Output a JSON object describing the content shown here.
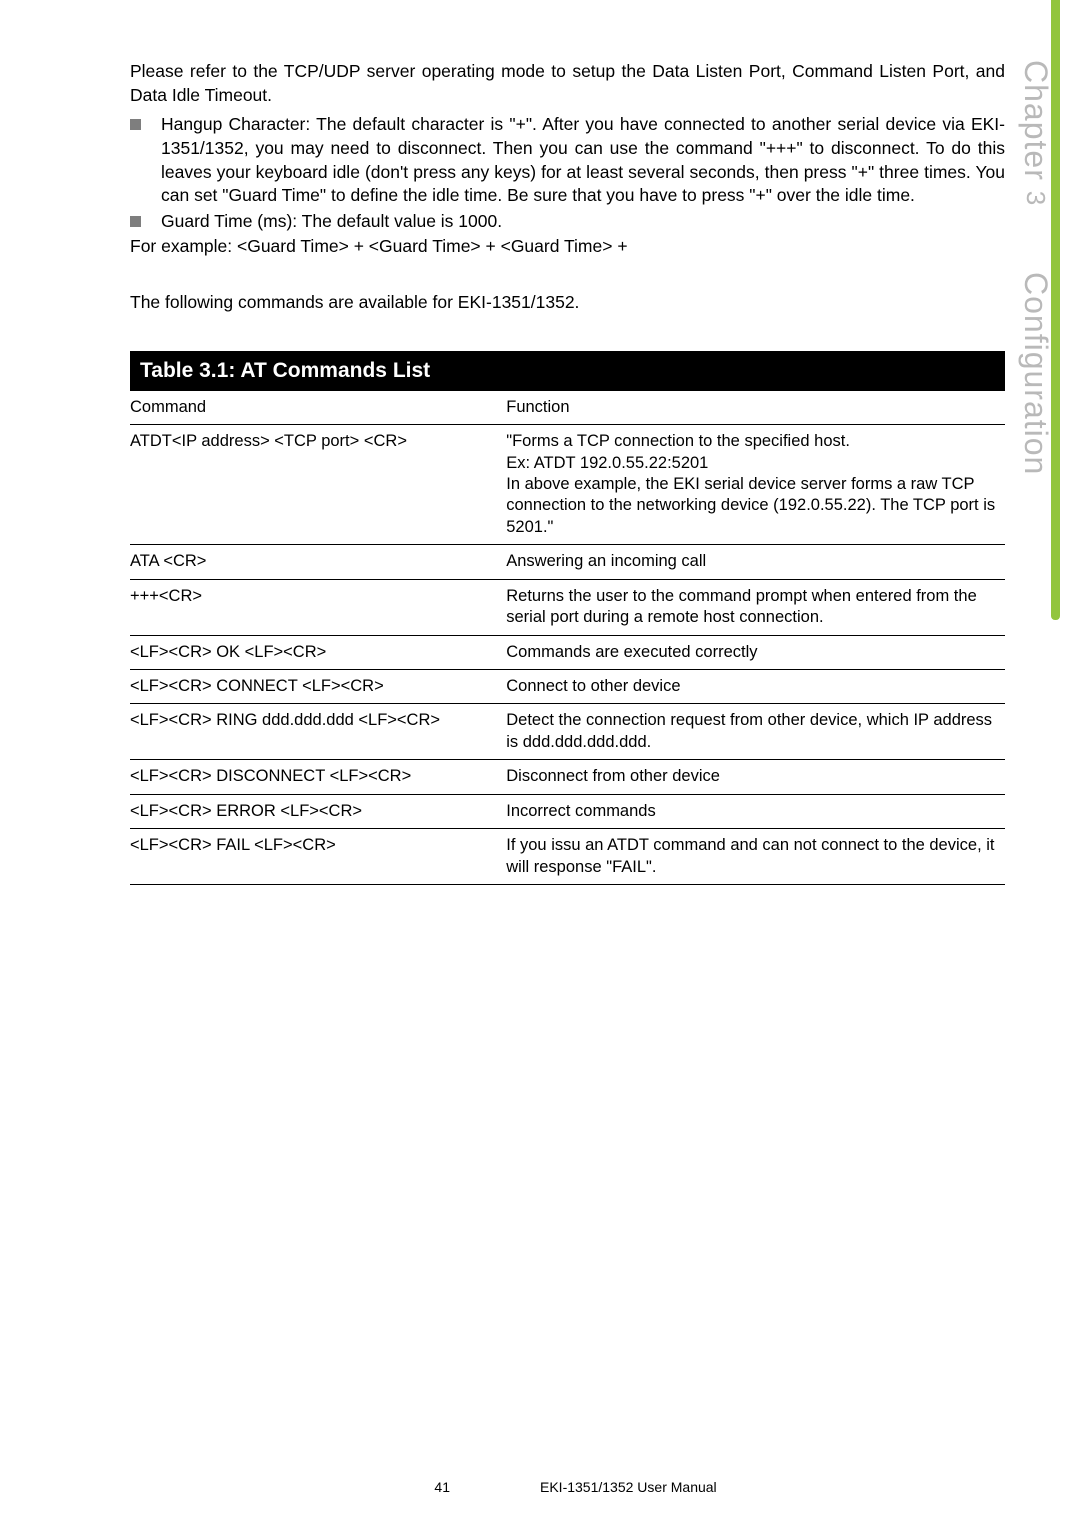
{
  "sideTab": {
    "line1": "Chapter",
    "three": "3",
    "line2": "Configuration"
  },
  "intro": {
    "p1": "Please refer to the TCP/UDP server operating mode to setup the Data Listen Port, Command Listen Port, and Data Idle Timeout.",
    "b1": "Hangup Character: The default character is \"+\". After you have connected to another serial device via EKI-1351/1352, you may need to disconnect. Then you can use the command \"+++\" to disconnect. To do this leaves your keyboard idle (don't press any keys) for at least several seconds, then press \"+\" three times. You can set \"Guard Time\" to define the idle time. Be sure that  you have to press \"+\" over the idle time.",
    "b2": "Guard Time (ms): The default value is 1000.",
    "p2": "For example: <Guard Time> + <Guard Time> + <Guard Time> +",
    "p3": "The following commands are available for EKI-1351/1352."
  },
  "table": {
    "title": "Table 3.1: AT Commands List",
    "headCmd": "Command",
    "headFn": "Function",
    "rows": [
      {
        "cmd": "ATDT<IP address> <TCP port> <CR>",
        "fn": "\"Forms a TCP connection to the specified host.\nEx: ATDT 192.0.55.22:5201\nIn above example, the EKI serial device server forms a raw TCP connection to the networking device (192.0.55.22). The TCP port is 5201.\""
      },
      {
        "cmd": "ATA <CR>",
        "fn": "Answering an incoming call"
      },
      {
        "cmd": "+++<CR>",
        "fn": "Returns the user to the command prompt when entered from the serial port during a remote host connection."
      },
      {
        "cmd": "<LF><CR> OK <LF><CR>",
        "fn": "Commands are executed correctly"
      },
      {
        "cmd": "<LF><CR> CONNECT <LF><CR>",
        "fn": "Connect to other device"
      },
      {
        "cmd": "<LF><CR> RING ddd.ddd.ddd <LF><CR>",
        "fn": "Detect the connection request from other device, which IP address is ddd.ddd.ddd.ddd."
      },
      {
        "cmd": "<LF><CR> DISCONNECT <LF><CR>",
        "fn": "Disconnect from other device"
      },
      {
        "cmd": "<LF><CR> ERROR <LF><CR>",
        "fn": "Incorrect commands"
      },
      {
        "cmd": "<LF><CR> FAIL <LF><CR>",
        "fn": "If you issu an ATDT command and can not connect to the device, it will response \"FAIL\"."
      }
    ]
  },
  "footer": {
    "page": "41",
    "manual": "EKI-1351/1352 User Manual"
  }
}
